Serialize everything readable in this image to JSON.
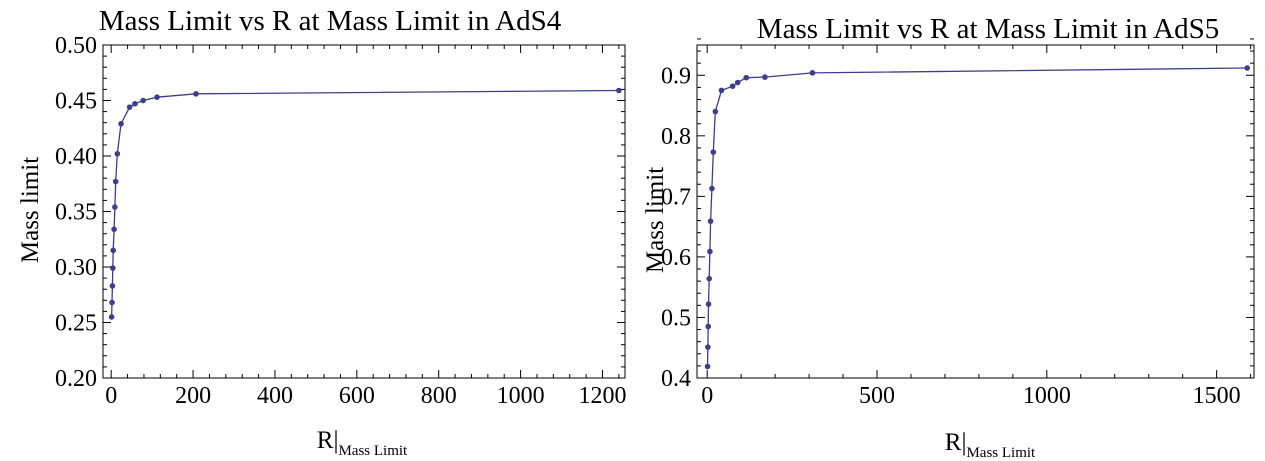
{
  "chart_data": [
    {
      "type": "line",
      "title": "Mass Limit vs R at Mass Limit in AdS4",
      "xlabel_main": "R",
      "xlabel_sub": "Mass Limit",
      "ylabel": "Mass limit",
      "xlim": [
        -20,
        1255
      ],
      "ylim": [
        0.2,
        0.5
      ],
      "xticks": [
        0,
        200,
        400,
        600,
        800,
        1000,
        1200
      ],
      "yticks": [
        0.2,
        0.25,
        0.3,
        0.35,
        0.4,
        0.45,
        0.5
      ],
      "ytick_labels": [
        "0.20",
        "0.25",
        "0.30",
        "0.35",
        "0.40",
        "0.45",
        "0.50"
      ],
      "grid": false,
      "color": "#3d3d8f",
      "x": [
        1,
        2,
        3,
        4,
        5,
        7,
        9,
        11,
        15,
        24,
        45,
        58,
        78,
        112,
        207,
        1240
      ],
      "y": [
        0.255,
        0.268,
        0.283,
        0.299,
        0.315,
        0.334,
        0.354,
        0.377,
        0.402,
        0.429,
        0.444,
        0.447,
        0.45,
        0.453,
        0.456,
        0.459
      ]
    },
    {
      "type": "line",
      "title": "Mass Limit vs R at Mass Limit in AdS5",
      "xlabel_main": "R",
      "xlabel_sub": "Mass Limit",
      "ylabel": "Mass limit",
      "xlim": [
        -30,
        1610
      ],
      "ylim": [
        0.4,
        0.95
      ],
      "xticks": [
        0,
        500,
        1000,
        1500
      ],
      "yticks": [
        0.4,
        0.5,
        0.6,
        0.7,
        0.8,
        0.9
      ],
      "ytick_labels": [
        "0.4",
        "0.5",
        "0.6",
        "0.7",
        "0.8",
        "0.9"
      ],
      "grid": false,
      "color": "#3d3d8f",
      "x": [
        1,
        2,
        3,
        4,
        6,
        8,
        10,
        14,
        18,
        24,
        42,
        75,
        90,
        115,
        170,
        310,
        1590
      ],
      "y": [
        0.419,
        0.451,
        0.485,
        0.522,
        0.564,
        0.609,
        0.659,
        0.713,
        0.773,
        0.84,
        0.875,
        0.882,
        0.888,
        0.896,
        0.897,
        0.904,
        0.912
      ]
    }
  ]
}
